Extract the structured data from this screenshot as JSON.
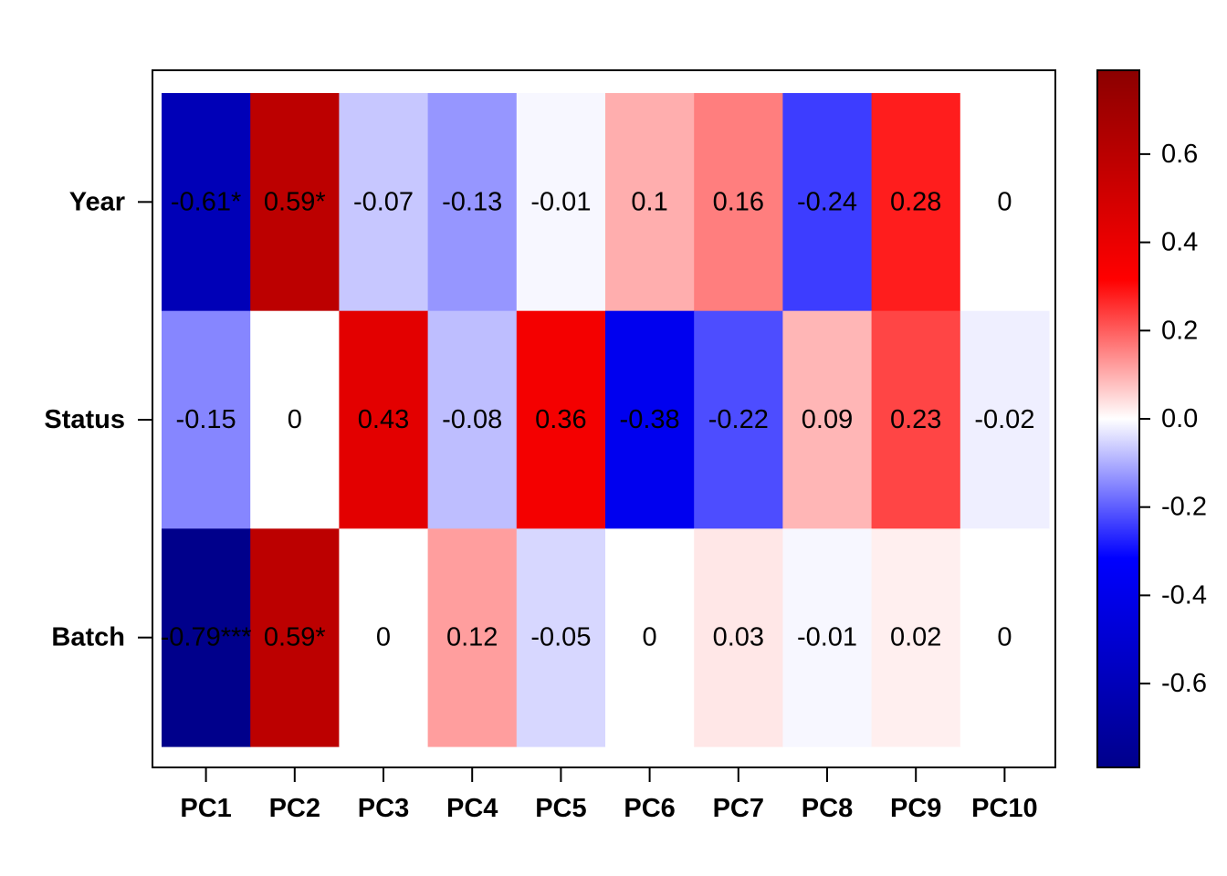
{
  "chart_data": {
    "type": "heatmap",
    "rows": [
      "Year",
      "Status",
      "Batch"
    ],
    "columns": [
      "PC1",
      "PC2",
      "PC3",
      "PC4",
      "PC5",
      "PC6",
      "PC7",
      "PC8",
      "PC9",
      "PC10"
    ],
    "values": [
      [
        -0.61,
        0.59,
        -0.07,
        -0.13,
        -0.01,
        0.1,
        0.16,
        -0.24,
        0.28,
        0.0
      ],
      [
        -0.15,
        0.0,
        0.43,
        -0.08,
        0.36,
        -0.38,
        -0.22,
        0.09,
        0.23,
        -0.02
      ],
      [
        -0.79,
        0.59,
        0.0,
        0.12,
        -0.05,
        0.0,
        0.03,
        -0.01,
        0.02,
        0.0
      ]
    ],
    "labels": [
      [
        "-0.61*",
        "0.59*",
        "-0.07",
        "-0.13",
        "-0.01",
        "0.1",
        "0.16",
        "-0.24",
        "0.28",
        "0"
      ],
      [
        "-0.15",
        "0",
        "0.43",
        "-0.08",
        "0.36",
        "-0.38",
        "-0.22",
        "0.09",
        "0.23",
        "-0.02"
      ],
      [
        "-0.79***",
        "0.59*",
        "0",
        "0.12",
        "-0.05",
        "0",
        "0.03",
        "-0.01",
        "0.02",
        "0"
      ]
    ],
    "colorbar": {
      "range": [
        -0.79,
        0.79
      ],
      "ticks": [
        -0.6,
        -0.4,
        -0.2,
        0.0,
        0.2,
        0.4,
        0.6
      ],
      "tick_labels": [
        "-0.6",
        "-0.4",
        "-0.2",
        "0.0",
        "0.2",
        "0.4",
        "0.6"
      ],
      "placement": "right",
      "colors": {
        "min": "#00008b",
        "low": "#0000ff",
        "mid": "#ffffff",
        "high": "#ff0000",
        "max": "#8b0000"
      }
    },
    "title": "",
    "xlabel": "",
    "ylabel": ""
  }
}
